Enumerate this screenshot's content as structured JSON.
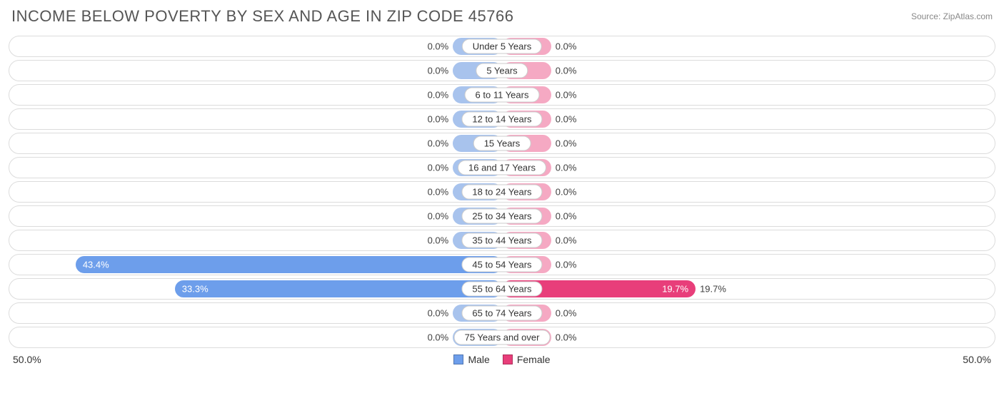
{
  "title": "INCOME BELOW POVERTY BY SEX AND AGE IN ZIP CODE 45766",
  "source": "Source: ZipAtlas.com",
  "axis_max": 50.0,
  "axis_left_label": "50.0%",
  "axis_right_label": "50.0%",
  "min_bar_pct": 5.0,
  "colors": {
    "male": "#6d9eeb",
    "male_zero": "#a8c3ed",
    "female": "#e83e7a",
    "female_zero": "#f5a9c3",
    "row_border": "#dcdcdc",
    "cat_border": "#cccccc",
    "title": "#555555",
    "text": "#333333",
    "source": "#888888",
    "background": "#ffffff",
    "label_on_bar": "#ffffff"
  },
  "legend": {
    "male": "Male",
    "female": "Female"
  },
  "font": {
    "title_size": 22,
    "label_size": 13,
    "axis_size": 14
  },
  "rows": [
    {
      "category": "Under 5 Years",
      "male": 0.0,
      "female": 0.0
    },
    {
      "category": "5 Years",
      "male": 0.0,
      "female": 0.0
    },
    {
      "category": "6 to 11 Years",
      "male": 0.0,
      "female": 0.0
    },
    {
      "category": "12 to 14 Years",
      "male": 0.0,
      "female": 0.0
    },
    {
      "category": "15 Years",
      "male": 0.0,
      "female": 0.0
    },
    {
      "category": "16 and 17 Years",
      "male": 0.0,
      "female": 0.0
    },
    {
      "category": "18 to 24 Years",
      "male": 0.0,
      "female": 0.0
    },
    {
      "category": "25 to 34 Years",
      "male": 0.0,
      "female": 0.0
    },
    {
      "category": "35 to 44 Years",
      "male": 0.0,
      "female": 0.0
    },
    {
      "category": "45 to 54 Years",
      "male": 43.4,
      "female": 0.0
    },
    {
      "category": "55 to 64 Years",
      "male": 33.3,
      "female": 19.7
    },
    {
      "category": "65 to 74 Years",
      "male": 0.0,
      "female": 0.0
    },
    {
      "category": "75 Years and over",
      "male": 0.0,
      "female": 0.0
    }
  ]
}
